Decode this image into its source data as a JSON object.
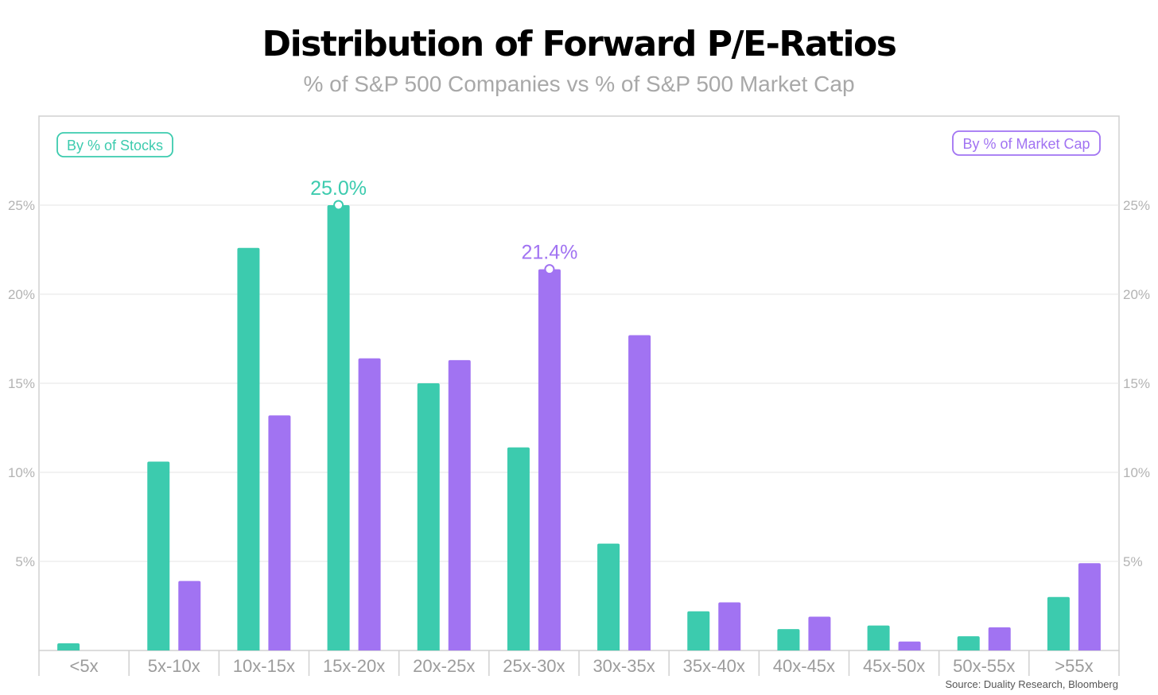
{
  "chart_data": {
    "type": "bar",
    "title": "Distribution of Forward P/E-Ratios",
    "subtitle": "% of S&P 500 Companies vs % of S&P 500 Market Cap",
    "categories": [
      "<5x",
      "5x-10x",
      "10x-15x",
      "15x-20x",
      "20x-25x",
      "25x-30x",
      "30x-35x",
      "35x-40x",
      "40x-45x",
      "45x-50x",
      "50x-55x",
      ">55x"
    ],
    "series": [
      {
        "name": "By % of Stocks",
        "color": "#3ccbae",
        "values": [
          0.4,
          10.6,
          22.6,
          25.0,
          15.0,
          11.4,
          6.0,
          2.2,
          1.2,
          1.4,
          0.8,
          3.0
        ]
      },
      {
        "name": "By % of Market Cap",
        "color": "#a173f2",
        "values": [
          0.0,
          3.9,
          13.2,
          16.4,
          16.3,
          21.4,
          17.7,
          2.7,
          1.9,
          0.5,
          1.3,
          4.9
        ]
      }
    ],
    "ylim": [
      0,
      30
    ],
    "yticks": [
      5,
      10,
      15,
      20,
      25
    ],
    "ytick_labels": [
      "5%",
      "10%",
      "15%",
      "20%",
      "25%"
    ],
    "annotations": [
      {
        "series": 0,
        "category": "15x-20x",
        "text": "25.0%"
      },
      {
        "series": 1,
        "category": "25x-30x",
        "text": "21.4%"
      }
    ],
    "legend": [
      {
        "text": "By % of Stocks",
        "color": "#3ccbae",
        "placement": "top-left"
      },
      {
        "text": "By % of Market Cap",
        "color": "#a173f2",
        "placement": "top-right"
      }
    ],
    "grid": true,
    "source": "Source: Duality Research, Bloomberg"
  }
}
